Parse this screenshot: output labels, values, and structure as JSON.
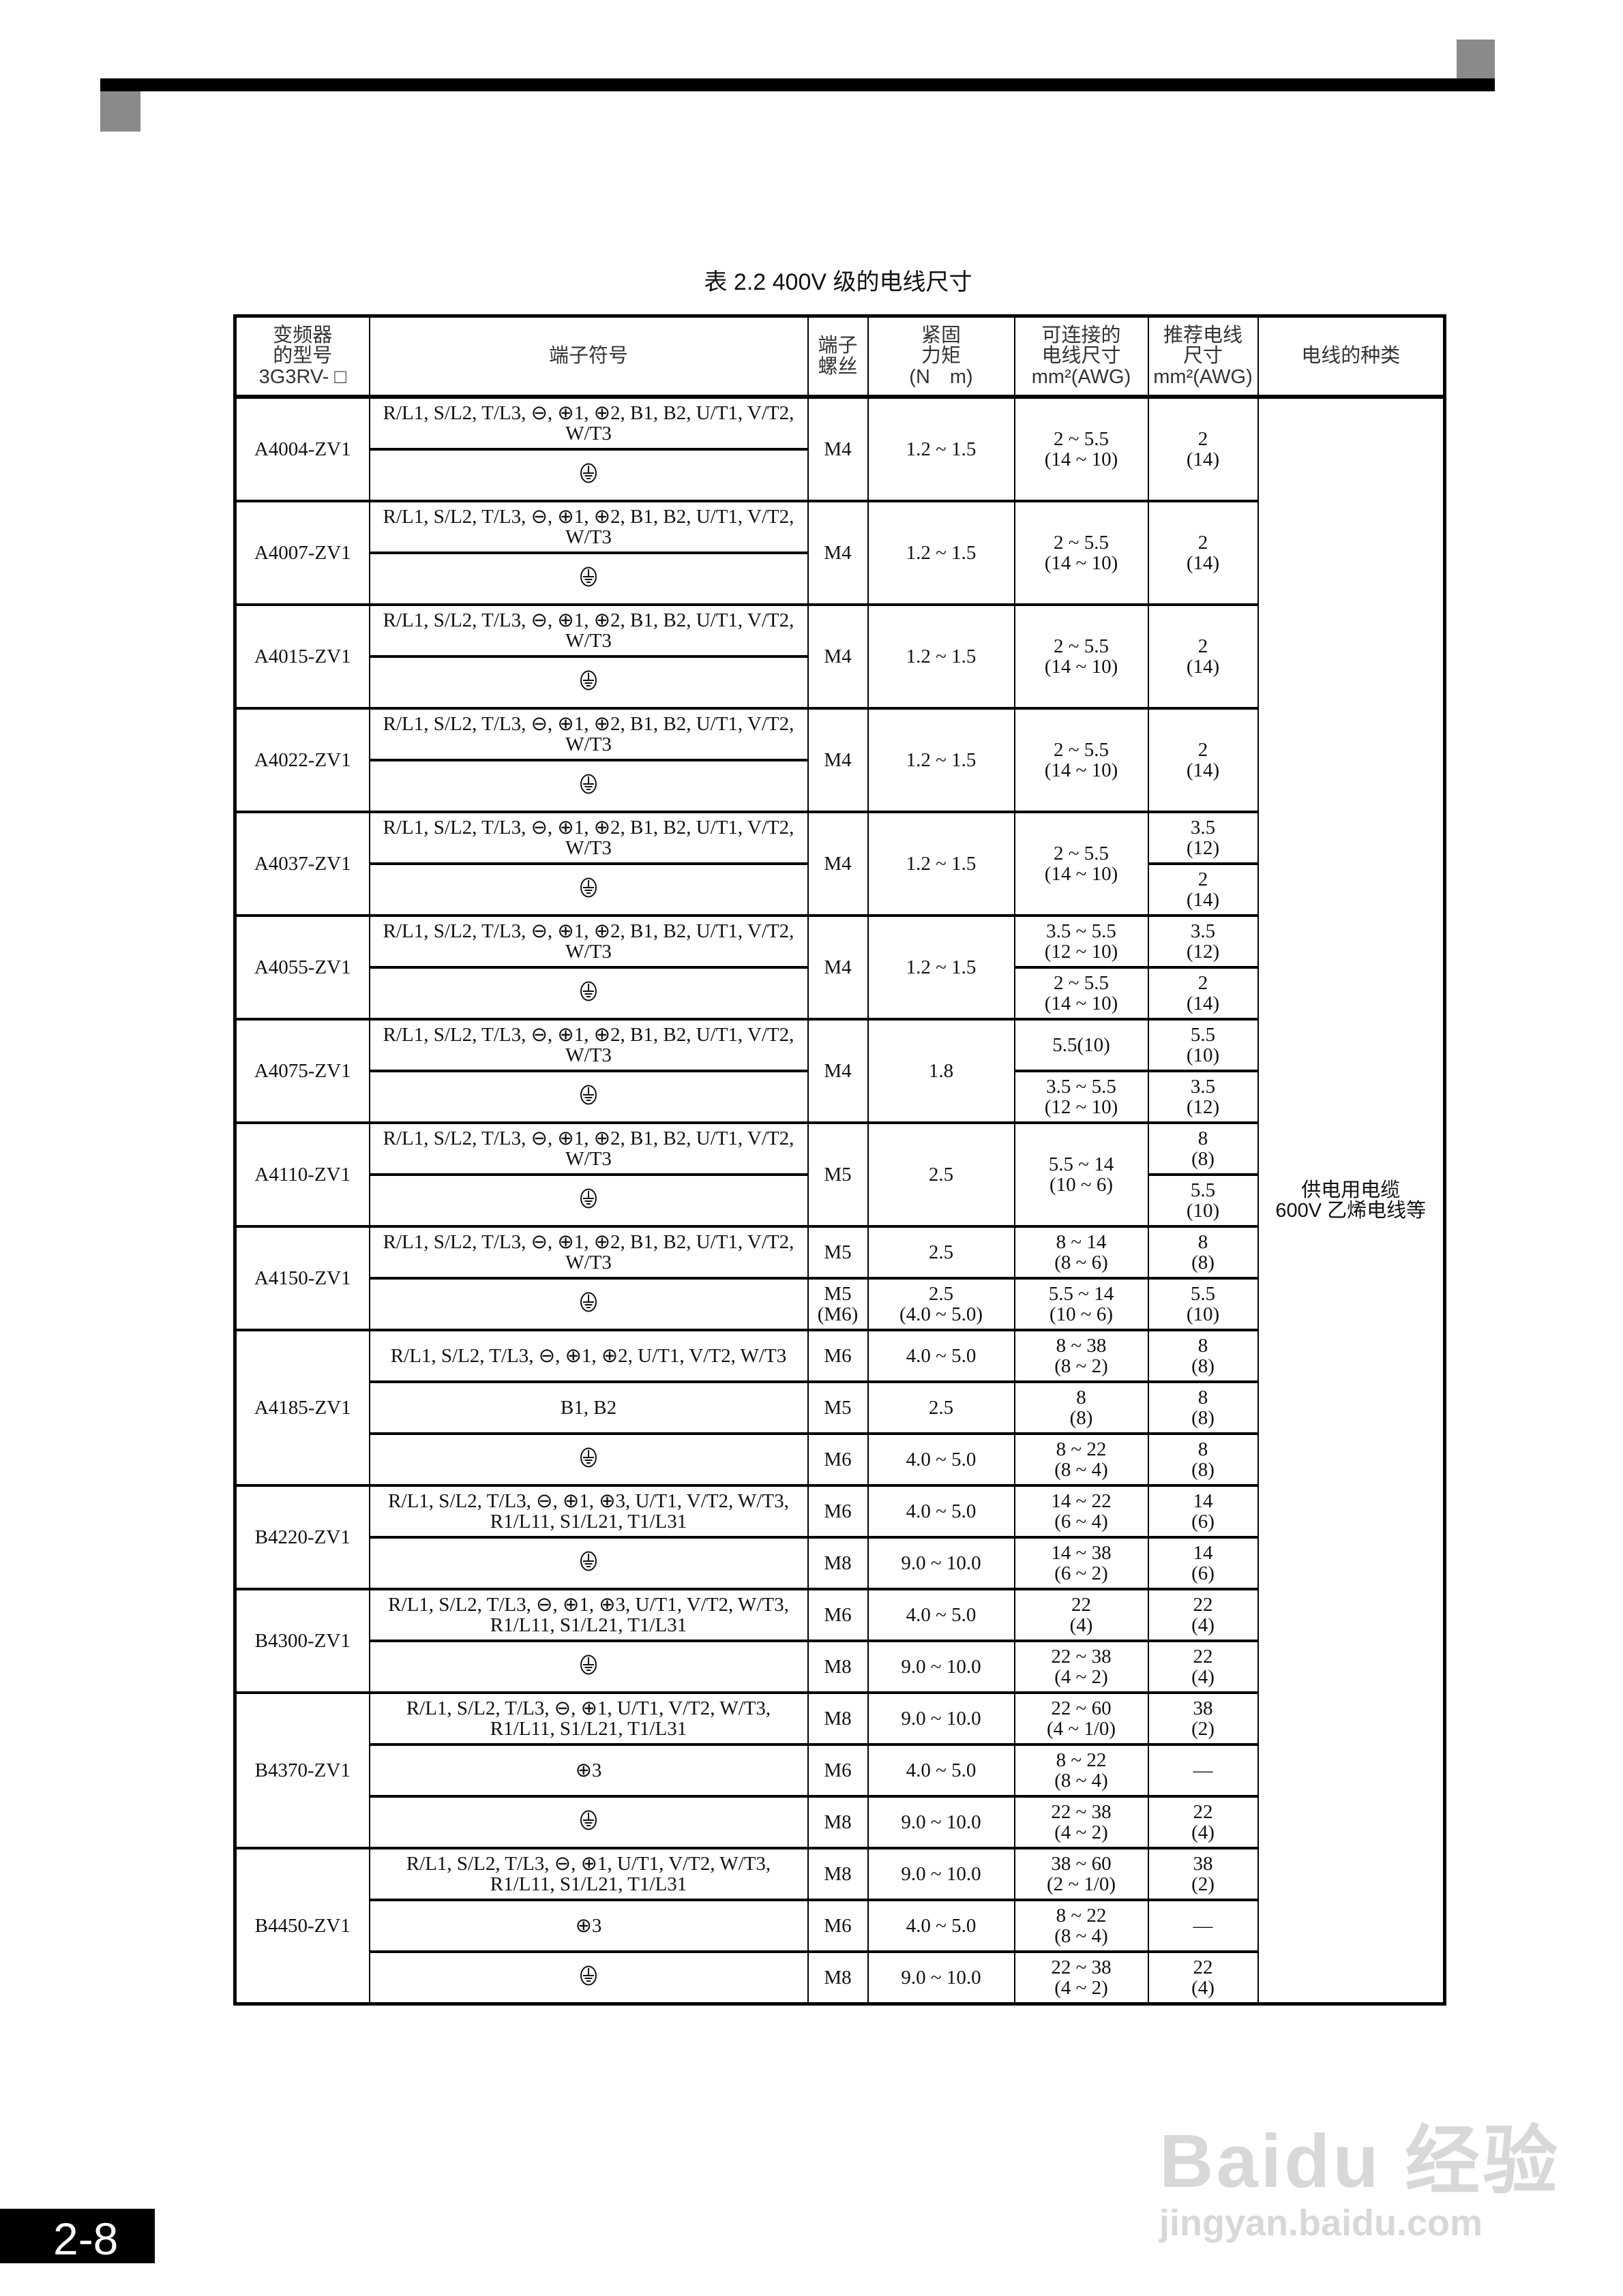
{
  "header": {
    "title": "表 2.2 400V 级的电线尺寸",
    "page_number": "2-8"
  },
  "columns": [
    "变频器\n的型号\n3G3RV- □",
    "端子符号",
    "端子\n螺丝",
    "紧固\n力矩\n(N　m)",
    "可连接的\n电线尺寸\nmm²(AWG)",
    "推荐电线\n尺寸\nmm²(AWG)",
    "电线的种类"
  ],
  "wire_type": "供电用电缆\n600V 乙烯电线等",
  "terminals": {
    "main_a": "R/L1, S/L2, T/L3, ⊖, ⊕1, ⊕2, B1, B2, U/T1, V/T2, W/T3",
    "main_b": "R/L1, S/L2, T/L3, ⊖, ⊕1, ⊕2, U/T1, V/T2, W/T3",
    "main_c": "R/L1, S/L2, T/L3, ⊖, ⊕1, ⊕3, U/T1, V/T2, W/T3, R1/L11, S1/L21, T1/L31",
    "main_d": "R/L1, S/L2, T/L3, ⊖, ⊕1, U/T1, V/T2, W/T3, R1/L11, S1/L21, T1/L31",
    "b1b2": "B1, B2",
    "p3": "⊕3",
    "ground_icon": "ground-icon"
  },
  "models": [
    {
      "model": "A4004-ZV1",
      "rows": [
        {
          "t": "main_a",
          "s": "M4",
          "q": "1.2 ~ 1.5",
          "c": "2 ~ 5.5\n(14 ~ 10)",
          "r": "2\n(14)"
        },
        {
          "t": "ground",
          "s": null,
          "q": null,
          "c": null,
          "r": null
        }
      ]
    },
    {
      "model": "A4007-ZV1",
      "rows": [
        {
          "t": "main_a",
          "s": "M4",
          "q": "1.2 ~ 1.5",
          "c": "2 ~ 5.5\n(14 ~ 10)",
          "r": "2\n(14)"
        },
        {
          "t": "ground",
          "s": null,
          "q": null,
          "c": null,
          "r": null
        }
      ]
    },
    {
      "model": "A4015-ZV1",
      "rows": [
        {
          "t": "main_a",
          "s": "M4",
          "q": "1.2 ~ 1.5",
          "c": "2 ~ 5.5\n(14 ~ 10)",
          "r": "2\n(14)"
        },
        {
          "t": "ground",
          "s": null,
          "q": null,
          "c": null,
          "r": null
        }
      ]
    },
    {
      "model": "A4022-ZV1",
      "rows": [
        {
          "t": "main_a",
          "s": "M4",
          "q": "1.2 ~ 1.5",
          "c": "2 ~ 5.5\n(14 ~ 10)",
          "r": "2\n(14)"
        },
        {
          "t": "ground",
          "s": null,
          "q": null,
          "c": null,
          "r": null
        }
      ]
    },
    {
      "model": "A4037-ZV1",
      "rows": [
        {
          "t": "main_a",
          "s": "M4",
          "q": "1.2 ~ 1.5",
          "c": "2 ~ 5.5\n(14 ~ 10)",
          "r": "3.5\n(12)"
        },
        {
          "t": "ground",
          "s": null,
          "q": null,
          "c": null,
          "r": "2\n(14)"
        }
      ]
    },
    {
      "model": "A4055-ZV1",
      "rows": [
        {
          "t": "main_a",
          "s": "M4",
          "q": "1.2 ~ 1.5",
          "c": "3.5 ~ 5.5\n(12 ~ 10)",
          "r": "3.5\n(12)"
        },
        {
          "t": "ground",
          "s": null,
          "q": null,
          "c": "2 ~ 5.5\n(14 ~ 10)",
          "r": "2\n(14)"
        }
      ]
    },
    {
      "model": "A4075-ZV1",
      "rows": [
        {
          "t": "main_a",
          "s": "M4",
          "q": "1.8",
          "c": "5.5(10)",
          "r": "5.5\n(10)"
        },
        {
          "t": "ground",
          "s": null,
          "q": null,
          "c": "3.5 ~ 5.5\n(12 ~ 10)",
          "r": "3.5\n(12)"
        }
      ]
    },
    {
      "model": "A4110-ZV1",
      "rows": [
        {
          "t": "main_a",
          "s": "M5",
          "q": "2.5",
          "c": "5.5 ~ 14\n(10 ~ 6)",
          "r": "8\n(8)"
        },
        {
          "t": "ground",
          "s": null,
          "q": null,
          "c": null,
          "r": "5.5\n(10)"
        }
      ]
    },
    {
      "model": "A4150-ZV1",
      "rows": [
        {
          "t": "main_a",
          "s": "M5",
          "q": "2.5",
          "c": "8 ~ 14\n(8 ~ 6)",
          "r": "8\n(8)"
        },
        {
          "t": "ground",
          "s": "M5\n(M6)",
          "q": "2.5\n(4.0 ~ 5.0)",
          "c": "5.5 ~ 14\n(10 ~ 6)",
          "r": "5.5\n(10)"
        }
      ]
    },
    {
      "model": "A4185-ZV1",
      "rows": [
        {
          "t": "main_b",
          "s": "M6",
          "q": "4.0 ~ 5.0",
          "c": "8 ~ 38\n(8 ~ 2)",
          "r": "8\n(8)"
        },
        {
          "t": "b1b2",
          "s": "M5",
          "q": "2.5",
          "c": "8\n(8)",
          "r": "8\n(8)"
        },
        {
          "t": "ground",
          "s": "M6",
          "q": "4.0 ~ 5.0",
          "c": "8 ~ 22\n(8 ~ 4)",
          "r": "8\n(8)"
        }
      ]
    },
    {
      "model": "B4220-ZV1",
      "rows": [
        {
          "t": "main_c",
          "s": "M6",
          "q": "4.0 ~ 5.0",
          "c": "14 ~ 22\n(6 ~ 4)",
          "r": "14\n(6)"
        },
        {
          "t": "ground",
          "s": "M8",
          "q": "9.0 ~ 10.0",
          "c": "14 ~ 38\n(6 ~ 2)",
          "r": "14\n(6)"
        }
      ]
    },
    {
      "model": "B4300-ZV1",
      "rows": [
        {
          "t": "main_c",
          "s": "M6",
          "q": "4.0 ~ 5.0",
          "c": "22\n(4)",
          "r": "22\n(4)"
        },
        {
          "t": "ground",
          "s": "M8",
          "q": "9.0 ~ 10.0",
          "c": "22 ~ 38\n(4 ~ 2)",
          "r": "22\n(4)"
        }
      ]
    },
    {
      "model": "B4370-ZV1",
      "rows": [
        {
          "t": "main_d",
          "s": "M8",
          "q": "9.0 ~ 10.0",
          "c": "22 ~ 60\n(4 ~ 1/0)",
          "r": "38\n(2)"
        },
        {
          "t": "p3",
          "s": "M6",
          "q": "4.0 ~ 5.0",
          "c": "8 ~ 22\n(8 ~ 4)",
          "r": "—"
        },
        {
          "t": "ground",
          "s": "M8",
          "q": "9.0 ~ 10.0",
          "c": "22 ~ 38\n(4 ~ 2)",
          "r": "22\n(4)"
        }
      ]
    },
    {
      "model": "B4450-ZV1",
      "rows": [
        {
          "t": "main_d",
          "s": "M8",
          "q": "9.0 ~ 10.0",
          "c": "38 ~ 60\n(2 ~ 1/0)",
          "r": "38\n(2)"
        },
        {
          "t": "p3",
          "s": "M6",
          "q": "4.0 ~ 5.0",
          "c": "8 ~ 22\n(8 ~ 4)",
          "r": "—"
        },
        {
          "t": "ground",
          "s": "M8",
          "q": "9.0 ~ 10.0",
          "c": "22 ~ 38\n(4 ~ 2)",
          "r": "22\n(4)"
        }
      ]
    }
  ],
  "watermark": {
    "brand": "Baidu 经验",
    "url": "jingyan.baidu.com"
  }
}
